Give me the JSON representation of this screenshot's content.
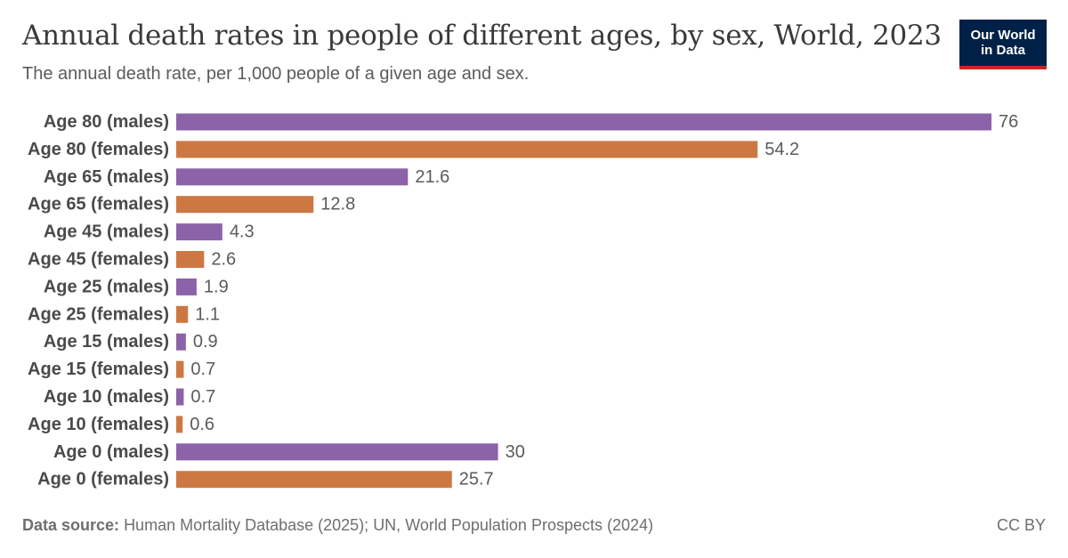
{
  "header": {
    "title": "Annual death rates in people of different ages, by sex, World, 2023",
    "subtitle": "The annual death rate, per 1,000 people of a given age and sex.",
    "logo_line1": "Our World",
    "logo_line2": "in Data"
  },
  "footer": {
    "source_label": "Data source:",
    "source_text": "Human Mortality Database (2025); UN, World Population Prospects (2024)",
    "license": "CC BY"
  },
  "colors": {
    "males": "#8c62a8",
    "females": "#cd7843",
    "logo_bg": "#002147",
    "logo_accent": "#ce261e"
  },
  "chart_data": {
    "type": "bar",
    "orientation": "horizontal",
    "categories": [
      "Age 80 (males)",
      "Age 80 (females)",
      "Age 65 (males)",
      "Age 65 (females)",
      "Age 45 (males)",
      "Age 45 (females)",
      "Age 25 (males)",
      "Age 25 (females)",
      "Age 15 (males)",
      "Age 15 (females)",
      "Age 10 (males)",
      "Age 10 (females)",
      "Age 0 (males)",
      "Age 0 (females)"
    ],
    "values": [
      76,
      54.2,
      21.6,
      12.8,
      4.3,
      2.6,
      1.9,
      1.1,
      0.9,
      0.7,
      0.7,
      0.6,
      30,
      25.7
    ],
    "value_labels": [
      "76",
      "54.2",
      "21.6",
      "12.8",
      "4.3",
      "2.6",
      "1.9",
      "1.1",
      "0.9",
      "0.7",
      "0.7",
      "0.6",
      "30",
      "25.7"
    ],
    "sex": [
      "males",
      "females",
      "males",
      "females",
      "males",
      "females",
      "males",
      "females",
      "males",
      "females",
      "males",
      "females",
      "males",
      "females"
    ],
    "xlim": [
      0,
      76
    ],
    "grid": false,
    "data_labels": true
  }
}
